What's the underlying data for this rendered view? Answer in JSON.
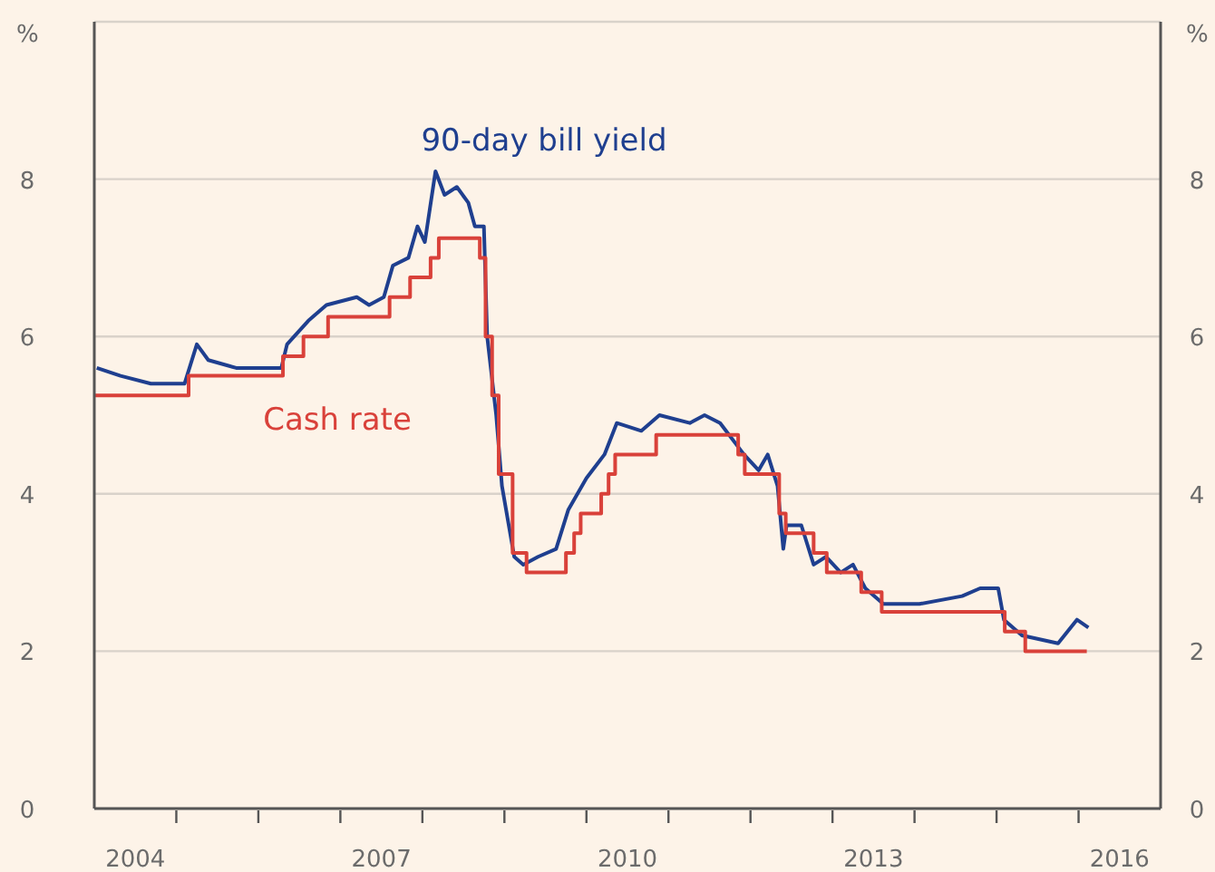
{
  "chart_data": {
    "type": "line",
    "ylabel": "%",
    "y2label": "%",
    "xlim": [
      2004,
      2017
    ],
    "xticks": [
      {
        "value": 2005,
        "label": null
      },
      {
        "value": 2006,
        "label": null
      },
      {
        "value": 2007,
        "label": null
      },
      {
        "value": 2008,
        "label": null
      },
      {
        "value": 2009,
        "label": null
      },
      {
        "value": 2010,
        "label": null
      },
      {
        "value": 2011,
        "label": null
      },
      {
        "value": 2012,
        "label": null
      },
      {
        "value": 2013,
        "label": null
      },
      {
        "value": 2014,
        "label": null
      },
      {
        "value": 2015,
        "label": null
      },
      {
        "value": 2016,
        "label": null
      },
      {
        "value": 2004.5,
        "label": "2004"
      },
      {
        "value": 2007.5,
        "label": "2007"
      },
      {
        "value": 2010.5,
        "label": "2010"
      },
      {
        "value": 2013.5,
        "label": "2013"
      },
      {
        "value": 2016.5,
        "label": "2016"
      }
    ],
    "ylim": [
      0,
      10
    ],
    "yticks": [
      0,
      2,
      4,
      6,
      8
    ],
    "y2lim": [
      0,
      10
    ],
    "y2ticks": [
      0,
      2,
      4,
      6,
      8
    ],
    "grid": "y",
    "series": [
      {
        "name": "90-day bill yield",
        "type": "line",
        "color": "#1f3f8f",
        "x": [
          2004.03,
          2004.32,
          2004.69,
          2005.1,
          2005.25,
          2005.39,
          2005.73,
          2006.28,
          2006.35,
          2006.61,
          2006.83,
          2007.2,
          2007.35,
          2007.53,
          2007.64,
          2007.83,
          2007.94,
          2008.03,
          2008.16,
          2008.27,
          2008.42,
          2008.56,
          2008.64,
          2008.75,
          2008.79,
          2008.9,
          2008.97,
          2009.12,
          2009.23,
          2009.41,
          2009.63,
          2009.78,
          2010.0,
          2010.22,
          2010.37,
          2010.67,
          2010.89,
          2011.26,
          2011.44,
          2011.63,
          2011.92,
          2012.1,
          2012.21,
          2012.33,
          2012.4,
          2012.44,
          2012.62,
          2012.77,
          2012.92,
          2013.1,
          2013.25,
          2013.4,
          2013.62,
          2014.06,
          2014.58,
          2014.8,
          2015.02,
          2015.09,
          2015.31,
          2015.75,
          2015.98,
          2016.12
        ],
        "values": [
          5.6,
          5.5,
          5.4,
          5.4,
          5.9,
          5.7,
          5.6,
          5.6,
          5.9,
          6.2,
          6.4,
          6.5,
          6.4,
          6.5,
          6.9,
          7.0,
          7.4,
          7.2,
          8.1,
          7.8,
          7.9,
          7.7,
          7.4,
          7.4,
          6.0,
          5.0,
          4.1,
          3.2,
          3.1,
          3.2,
          3.3,
          3.8,
          4.2,
          4.5,
          4.9,
          4.8,
          5.0,
          4.9,
          5.0,
          4.9,
          4.5,
          4.3,
          4.5,
          4.1,
          3.3,
          3.6,
          3.6,
          3.1,
          3.2,
          3.0,
          3.1,
          2.8,
          2.6,
          2.6,
          2.7,
          2.8,
          2.8,
          2.4,
          2.2,
          2.1,
          2.4,
          2.3
        ]
      },
      {
        "name": "Cash rate",
        "type": "step",
        "color": "#d9413a",
        "x": [
          2004.0,
          2005.15,
          2006.3,
          2006.55,
          2006.85,
          2007.6,
          2007.85,
          2008.1,
          2008.2,
          2008.7,
          2008.77,
          2008.85,
          2008.93,
          2009.1,
          2009.27,
          2009.75,
          2009.85,
          2009.93,
          2010.18,
          2010.27,
          2010.35,
          2010.85,
          2011.85,
          2011.93,
          2012.35,
          2012.43,
          2012.77,
          2012.93,
          2013.35,
          2013.6,
          2015.1,
          2015.35,
          2016.1
        ],
        "values": [
          5.25,
          5.5,
          5.75,
          6.0,
          6.25,
          6.5,
          6.75,
          7.0,
          7.25,
          7.0,
          6.0,
          5.25,
          4.25,
          3.25,
          3.0,
          3.25,
          3.5,
          3.75,
          4.0,
          4.25,
          4.5,
          4.75,
          4.5,
          4.25,
          3.75,
          3.5,
          3.25,
          3.0,
          2.75,
          2.5,
          2.25,
          2.0,
          2.0
        ]
      }
    ]
  }
}
